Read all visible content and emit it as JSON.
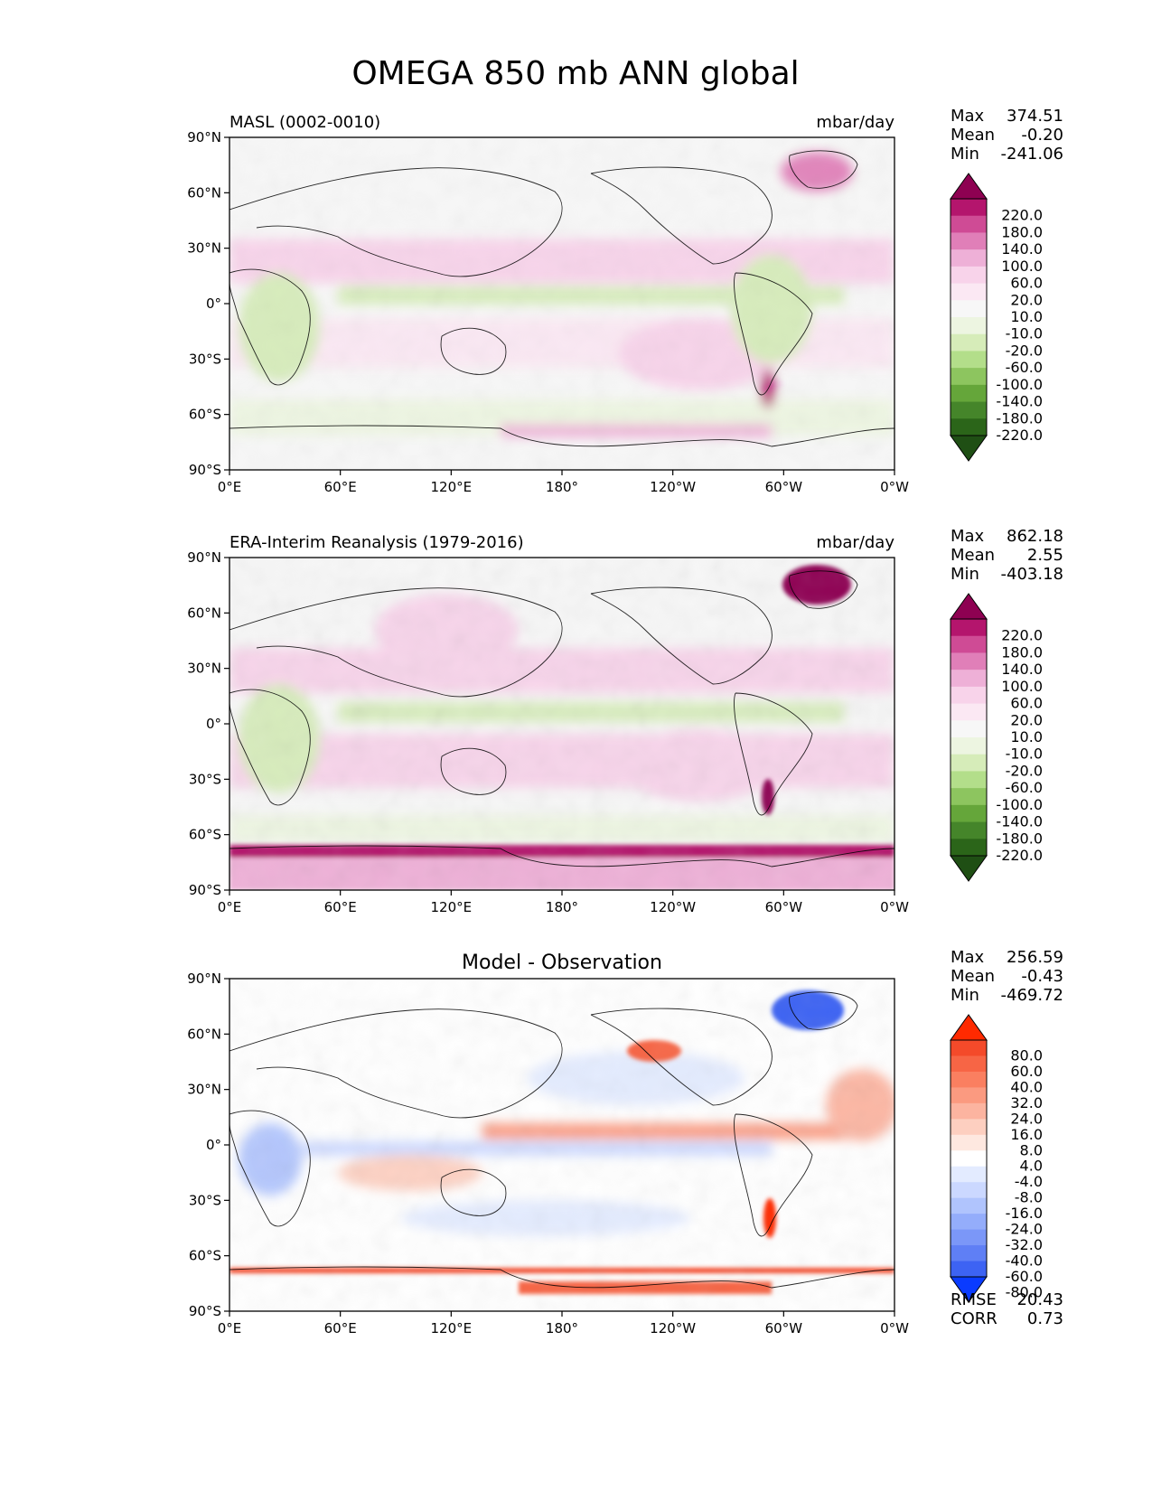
{
  "title": "OMEGA 850 mb ANN global",
  "panels": [
    {
      "left_title": "MASL (0002-0010)",
      "right_title": "mbar/day",
      "center_title": "",
      "stats": [
        {
          "label": "Max",
          "value": "374.51"
        },
        {
          "label": "Mean",
          "value": "-0.20"
        },
        {
          "label": "Min",
          "value": "-241.06"
        }
      ],
      "extra_stats": [],
      "colormap": "PiYG_r",
      "colorbar_labels": [
        "220.0",
        "180.0",
        "140.0",
        "100.0",
        "60.0",
        "20.0",
        "10.0",
        "-10.0",
        "-20.0",
        "-60.0",
        "-100.0",
        "-140.0",
        "-180.0",
        "-220.0"
      ],
      "colorbar_colors": [
        "#8e0152",
        "#b4156d",
        "#cf4b95",
        "#e07fb8",
        "#eeb0d7",
        "#f8d3ea",
        "#fbe8f3",
        "#f7f7f7",
        "#edf5e1",
        "#d6ecb9",
        "#b3de8a",
        "#8dc55f",
        "#65a63a",
        "#45852a",
        "#2b6519",
        "#1f4f14"
      ]
    },
    {
      "left_title": "ERA-Interim Reanalysis (1979-2016)",
      "right_title": "mbar/day",
      "center_title": "",
      "stats": [
        {
          "label": "Max",
          "value": "862.18"
        },
        {
          "label": "Mean",
          "value": "2.55"
        },
        {
          "label": "Min",
          "value": "-403.18"
        }
      ],
      "extra_stats": [],
      "colormap": "PiYG_r",
      "colorbar_labels": [
        "220.0",
        "180.0",
        "140.0",
        "100.0",
        "60.0",
        "20.0",
        "10.0",
        "-10.0",
        "-20.0",
        "-60.0",
        "-100.0",
        "-140.0",
        "-180.0",
        "-220.0"
      ],
      "colorbar_colors": [
        "#8e0152",
        "#b4156d",
        "#cf4b95",
        "#e07fb8",
        "#eeb0d7",
        "#f8d3ea",
        "#fbe8f3",
        "#f7f7f7",
        "#edf5e1",
        "#d6ecb9",
        "#b3de8a",
        "#8dc55f",
        "#65a63a",
        "#45852a",
        "#2b6519",
        "#1f4f14"
      ]
    },
    {
      "left_title": "",
      "right_title": "",
      "center_title": "Model - Observation",
      "stats": [
        {
          "label": "Max",
          "value": "256.59"
        },
        {
          "label": "Mean",
          "value": "-0.43"
        },
        {
          "label": "Min",
          "value": "-469.72"
        }
      ],
      "extra_stats": [
        {
          "label": "RMSE",
          "value": "20.43"
        },
        {
          "label": "CORR",
          "value": "0.73"
        }
      ],
      "colormap": "bwr",
      "colorbar_labels": [
        "80.0",
        "60.0",
        "40.0",
        "32.0",
        "24.0",
        "16.0",
        "8.0",
        "4.0",
        "-4.0",
        "-8.0",
        "-16.0",
        "-24.0",
        "-32.0",
        "-40.0",
        "-60.0",
        "-80.0"
      ],
      "colorbar_colors": [
        "#ff2a00",
        "#f44a2a",
        "#f76545",
        "#fa7f60",
        "#fb9a80",
        "#fcb4a0",
        "#fdcfc0",
        "#fee8e0",
        "#ffffff",
        "#e3ebff",
        "#cbd8ff",
        "#b0c4fd",
        "#94adfb",
        "#7b97f8",
        "#5f7ff5",
        "#3d63f3",
        "#0a3bff"
      ]
    }
  ],
  "axes": {
    "lat_ticks": [
      "90°N",
      "60°N",
      "30°N",
      "0°",
      "30°S",
      "60°S",
      "90°S"
    ],
    "lon_ticks": [
      "0°E",
      "60°E",
      "120°E",
      "180°",
      "120°W",
      "60°W",
      "0°W"
    ]
  }
}
